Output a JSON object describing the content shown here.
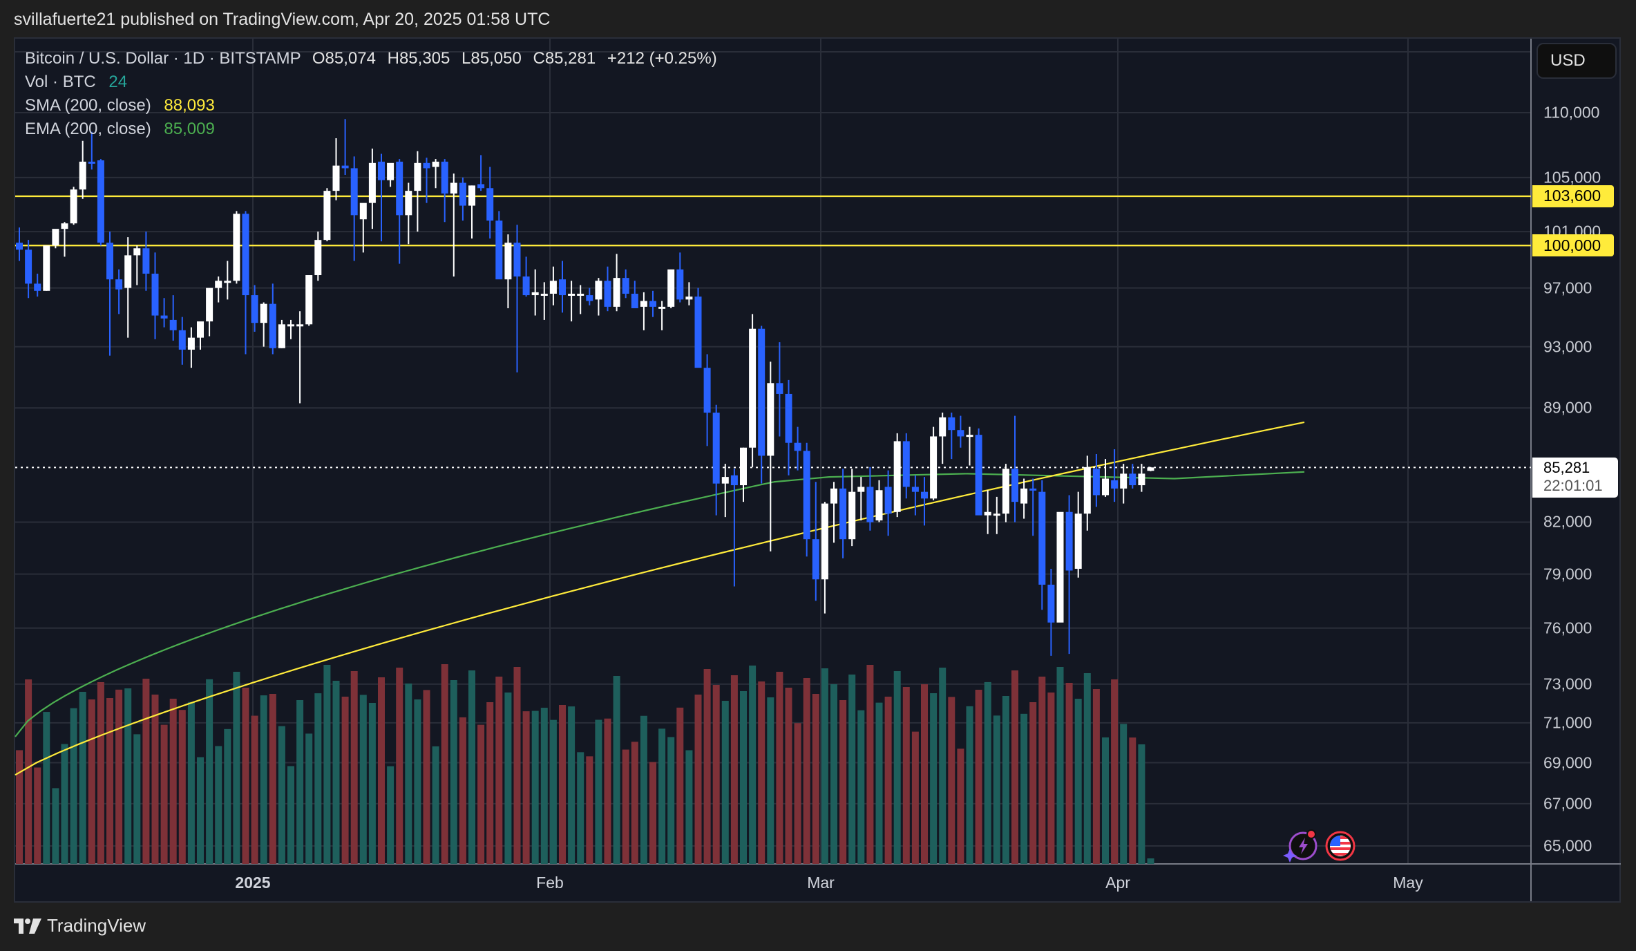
{
  "publish_line": "svillafuerte21 published on TradingView.com, Apr 20, 2025 01:58 UTC",
  "legend": {
    "symbol": "Bitcoin / U.S. Dollar · 1D · BITSTAMP",
    "open": "O85,074",
    "high": "H85,305",
    "low": "L85,050",
    "close": "C85,281",
    "change": "+212 (+0.25%)",
    "vol_label": "Vol · BTC",
    "vol_value": "24",
    "sma_label": "SMA (200, close)",
    "sma_value": "88,093",
    "ema_label": "EMA (200, close)",
    "ema_value": "85,009"
  },
  "currency_button": "USD",
  "price_axis": [
    "110,000",
    "105,000",
    "101,000",
    "97,000",
    "93,000",
    "89,000",
    "82,000",
    "79,000",
    "76,000",
    "73,000",
    "71,000",
    "69,000",
    "67,000",
    "65,000"
  ],
  "horizontal_levels": [
    {
      "label": "103,600",
      "value": 103600
    },
    {
      "label": "100,000",
      "value": 100000
    }
  ],
  "last_price": {
    "value": "85,281",
    "countdown": "22:01:01"
  },
  "time_axis": [
    {
      "label": "2025",
      "bold": true
    },
    {
      "label": "Feb"
    },
    {
      "label": "Mar"
    },
    {
      "label": "Apr"
    },
    {
      "label": "May"
    }
  ],
  "logo_text": "TradingView",
  "colors": {
    "up": "#ffffff",
    "down": "#2962ff",
    "vol_up": "#1e5f5c",
    "vol_down": "#7e3138",
    "sma": "#ffeb3b",
    "ema": "#4caf50",
    "level": "#ffeb3b",
    "background": "#131722",
    "grid": "#2a2e39"
  },
  "chart_data": {
    "type": "candlestick",
    "title": "Bitcoin / U.S. Dollar · 1D · BITSTAMP",
    "xlabel": "",
    "ylabel": "USD",
    "ylim": [
      64000,
      112000
    ],
    "scale": "log",
    "grid": true,
    "x_ticks": [
      "2025",
      "Feb",
      "Mar",
      "Apr",
      "May"
    ],
    "levels": [
      103600,
      100000
    ],
    "series": [
      {
        "name": "SMA (200, close)",
        "last": 88093
      },
      {
        "name": "EMA (200, close)",
        "last": 85009
      },
      {
        "name": "Vol · BTC",
        "last": 24
      }
    ],
    "candles": [
      [
        100200,
        101300,
        98900,
        99700
      ],
      [
        99700,
        100400,
        96300,
        97300
      ],
      [
        97300,
        98000,
        96400,
        96800
      ],
      [
        96800,
        99200,
        96800,
        100000
      ],
      [
        100000,
        100600,
        99800,
        101200
      ],
      [
        101200,
        101700,
        99200,
        101600
      ],
      [
        101600,
        104300,
        101500,
        104100
      ],
      [
        104100,
        107800,
        103400,
        106200
      ],
      [
        106200,
        108500,
        105600,
        106100
      ],
      [
        106300,
        106400,
        100000,
        100200
      ],
      [
        100200,
        101000,
        92400,
        97600
      ],
      [
        97600,
        98300,
        95200,
        96900
      ],
      [
        97000,
        100600,
        93600,
        99300
      ],
      [
        99300,
        100000,
        97200,
        99800
      ],
      [
        99800,
        101000,
        96800,
        98000
      ],
      [
        98000,
        99500,
        93500,
        95100
      ],
      [
        95100,
        96300,
        94300,
        94900
      ],
      [
        94800,
        96500,
        93400,
        94100
      ],
      [
        94100,
        95000,
        91800,
        92800
      ],
      [
        92800,
        94300,
        91600,
        93600
      ],
      [
        93600,
        94500,
        92800,
        94700
      ],
      [
        94700,
        96800,
        93700,
        97000
      ],
      [
        97000,
        97800,
        96000,
        97500
      ],
      [
        97400,
        98900,
        96200,
        97500
      ],
      [
        97500,
        102500,
        97300,
        102300
      ],
      [
        102300,
        102500,
        92500,
        96500
      ],
      [
        96500,
        97200,
        94000,
        94600
      ],
      [
        94600,
        96000,
        93000,
        95900
      ],
      [
        95900,
        97300,
        92500,
        92900
      ],
      [
        92900,
        94800,
        92900,
        94500
      ],
      [
        94500,
        94800,
        93500,
        94500
      ],
      [
        94500,
        95400,
        89300,
        94500
      ],
      [
        94500,
        96300,
        94400,
        97900
      ],
      [
        97900,
        101000,
        97500,
        100400
      ],
      [
        100400,
        104200,
        100300,
        104000
      ],
      [
        104000,
        108000,
        103300,
        105900
      ],
      [
        105900,
        109500,
        105200,
        105700
      ],
      [
        105700,
        106600,
        98900,
        102200
      ],
      [
        101900,
        103000,
        99500,
        103100
      ],
      [
        103100,
        107200,
        101200,
        106100
      ],
      [
        106200,
        106800,
        100300,
        104800
      ],
      [
        104800,
        106000,
        104300,
        106100
      ],
      [
        106200,
        106400,
        98700,
        102200
      ],
      [
        102200,
        104600,
        100100,
        104000
      ],
      [
        104000,
        107000,
        101000,
        106100
      ],
      [
        106100,
        106500,
        103100,
        105700
      ],
      [
        105800,
        106400,
        104200,
        106200
      ],
      [
        106200,
        106400,
        101700,
        103800
      ],
      [
        103800,
        105300,
        97800,
        104600
      ],
      [
        104600,
        105000,
        101800,
        102900
      ],
      [
        102900,
        104400,
        100500,
        104400
      ],
      [
        104500,
        106700,
        104000,
        104200
      ],
      [
        104200,
        105800,
        100500,
        101800
      ],
      [
        101800,
        102500,
        97900,
        97600
      ],
      [
        97600,
        100800,
        95600,
        100200
      ],
      [
        100200,
        101500,
        91300,
        97800
      ],
      [
        97800,
        99200,
        96400,
        96500
      ],
      [
        96500,
        98300,
        95100,
        96700
      ],
      [
        96600,
        97400,
        94800,
        96600
      ],
      [
        96600,
        98500,
        95800,
        97500
      ],
      [
        97600,
        98900,
        95300,
        96500
      ],
      [
        96500,
        97500,
        94700,
        96600
      ],
      [
        96600,
        97200,
        95200,
        96600
      ],
      [
        96500,
        97000,
        95800,
        96100
      ],
      [
        96200,
        97700,
        95100,
        97500
      ],
      [
        97500,
        98500,
        95400,
        95700
      ],
      [
        95700,
        99400,
        95400,
        97700
      ],
      [
        97700,
        98300,
        96300,
        96600
      ],
      [
        96600,
        97500,
        96000,
        95600
      ],
      [
        95700,
        96700,
        94100,
        96100
      ],
      [
        96100,
        96800,
        95000,
        95700
      ],
      [
        95700,
        96100,
        94100,
        95700
      ],
      [
        95700,
        97800,
        95600,
        98300
      ],
      [
        98300,
        99500,
        96000,
        96200
      ],
      [
        96200,
        97400,
        95800,
        96400
      ],
      [
        96400,
        97000,
        93200,
        91600
      ],
      [
        91600,
        92500,
        86600,
        88700
      ],
      [
        88700,
        89200,
        82400,
        84300
      ],
      [
        84300,
        85500,
        82300,
        84700
      ],
      [
        84800,
        85200,
        78300,
        84200
      ],
      [
        84200,
        86500,
        83200,
        86500
      ],
      [
        86500,
        95200,
        85300,
        94200
      ],
      [
        94200,
        94400,
        84300,
        86000
      ],
      [
        86000,
        92000,
        80300,
        90600
      ],
      [
        90600,
        93300,
        87200,
        89900
      ],
      [
        89900,
        90800,
        84800,
        86800
      ],
      [
        86800,
        87800,
        85100,
        86300
      ],
      [
        86300,
        86800,
        80000,
        81000
      ],
      [
        81000,
        84400,
        77500,
        78700
      ],
      [
        78700,
        83200,
        76800,
        83100
      ],
      [
        83100,
        84400,
        80800,
        84000
      ],
      [
        84000,
        85200,
        79900,
        81000
      ],
      [
        81000,
        85200,
        80600,
        83800
      ],
      [
        83800,
        84700,
        82100,
        84100
      ],
      [
        84100,
        85300,
        81500,
        82000
      ],
      [
        82100,
        84500,
        82000,
        83900
      ],
      [
        84100,
        85100,
        81200,
        82500
      ],
      [
        82600,
        87400,
        82300,
        86900
      ],
      [
        86900,
        87400,
        83400,
        84100
      ],
      [
        84100,
        84800,
        82400,
        83800
      ],
      [
        83800,
        84700,
        81800,
        83400
      ],
      [
        83400,
        87800,
        83300,
        87200
      ],
      [
        87200,
        88700,
        85500,
        88400
      ],
      [
        88400,
        88700,
        85800,
        87600
      ],
      [
        87600,
        88500,
        86500,
        87200
      ],
      [
        87200,
        87800,
        85400,
        87300
      ],
      [
        87300,
        87700,
        84200,
        82400
      ],
      [
        82400,
        83900,
        81300,
        82600
      ],
      [
        82500,
        83500,
        81300,
        82500
      ],
      [
        82500,
        85500,
        82000,
        85200
      ],
      [
        85200,
        88500,
        82000,
        83200
      ],
      [
        83100,
        84600,
        82200,
        84000
      ],
      [
        84000,
        84600,
        81200,
        83900
      ],
      [
        83800,
        84500,
        77000,
        78400
      ],
      [
        78400,
        79300,
        74500,
        76300
      ],
      [
        76300,
        81200,
        76400,
        82600
      ],
      [
        82600,
        83600,
        74600,
        79200
      ],
      [
        79300,
        83800,
        78800,
        82500
      ],
      [
        82500,
        86000,
        81500,
        85300
      ],
      [
        85200,
        86100,
        82900,
        83600
      ],
      [
        83600,
        85800,
        83500,
        84600
      ],
      [
        84500,
        86400,
        83200,
        84000
      ],
      [
        84000,
        85500,
        83100,
        84900
      ],
      [
        84900,
        85500,
        84000,
        84200
      ],
      [
        84200,
        85500,
        83800,
        84900
      ],
      [
        85074,
        85305,
        85050,
        85281
      ]
    ],
    "volume_sample_note": "volume bars colored by candle direction"
  }
}
